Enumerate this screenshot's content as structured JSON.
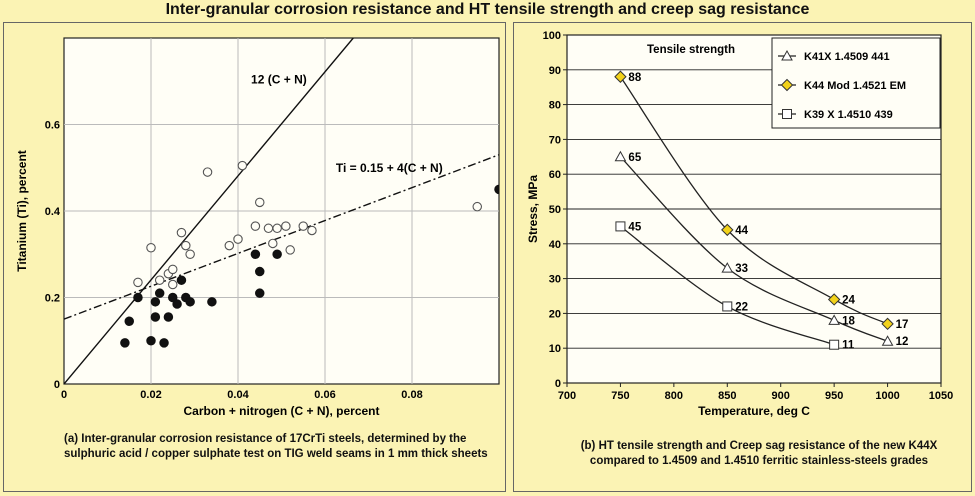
{
  "title": "Inter-granular corrosion resistance and HT tensile strength and creep sag resistance",
  "panel_a": {
    "caption": "(a) Inter-granular corrosion resistance of 17CrTi steels, determined by the sulphuric acid / copper sulphate test on TIG weld seams in 1 mm thick sheets"
  },
  "panel_b": {
    "caption": "(b) HT tensile strength and Creep sag resistance of the new K44X compared to 1.4509 and 1.4510 ferritic stainless-steels grades"
  },
  "chart_data": [
    {
      "type": "scatter",
      "title": "",
      "xlabel": "Carbon + nitrogen  (C + N), percent",
      "ylabel": "Titanium (Ti), percent",
      "xlim": [
        0,
        0.1
      ],
      "ylim": [
        0,
        0.8
      ],
      "xticks": [
        0,
        0.02,
        0.04,
        0.06,
        0.08
      ],
      "xtick_labels": [
        "0",
        "0.02",
        "0.04",
        "0.06",
        "0.08"
      ],
      "yticks": [
        0,
        0.2,
        0.4,
        0.6
      ],
      "ytick_labels": [
        "0",
        "0.2",
        "0.4",
        "0.6"
      ],
      "grid": true,
      "lines": [
        {
          "label": "12 (C + N)",
          "style": "solid",
          "x": [
            0,
            0.0665
          ],
          "y": [
            0,
            0.8
          ]
        },
        {
          "label": "Ti = 0.15 + 4(C + N)",
          "style": "dash-dot",
          "x": [
            0,
            0.1
          ],
          "y": [
            0.15,
            0.53
          ]
        }
      ],
      "series": [
        {
          "marker": "open-circle",
          "points": [
            [
              0.017,
              0.235
            ],
            [
              0.02,
              0.315
            ],
            [
              0.022,
              0.24
            ],
            [
              0.024,
              0.255
            ],
            [
              0.025,
              0.265
            ],
            [
              0.025,
              0.23
            ],
            [
              0.027,
              0.35
            ],
            [
              0.028,
              0.32
            ],
            [
              0.029,
              0.3
            ],
            [
              0.033,
              0.49
            ],
            [
              0.038,
              0.32
            ],
            [
              0.04,
              0.335
            ],
            [
              0.041,
              0.505
            ],
            [
              0.044,
              0.365
            ],
            [
              0.045,
              0.42
            ],
            [
              0.047,
              0.36
            ],
            [
              0.048,
              0.325
            ],
            [
              0.049,
              0.36
            ],
            [
              0.051,
              0.365
            ],
            [
              0.052,
              0.31
            ],
            [
              0.055,
              0.365
            ],
            [
              0.057,
              0.355
            ],
            [
              0.095,
              0.41
            ]
          ]
        },
        {
          "marker": "filled-circle",
          "points": [
            [
              0.014,
              0.095
            ],
            [
              0.015,
              0.145
            ],
            [
              0.017,
              0.2
            ],
            [
              0.02,
              0.1
            ],
            [
              0.021,
              0.155
            ],
            [
              0.021,
              0.19
            ],
            [
              0.022,
              0.21
            ],
            [
              0.023,
              0.095
            ],
            [
              0.024,
              0.155
            ],
            [
              0.025,
              0.2
            ],
            [
              0.026,
              0.185
            ],
            [
              0.027,
              0.24
            ],
            [
              0.028,
              0.2
            ],
            [
              0.029,
              0.19
            ],
            [
              0.034,
              0.19
            ],
            [
              0.044,
              0.3
            ],
            [
              0.045,
              0.26
            ],
            [
              0.045,
              0.21
            ],
            [
              0.049,
              0.3
            ],
            [
              0.1,
              0.45
            ]
          ]
        }
      ]
    },
    {
      "type": "line",
      "title": "Tensile strength",
      "xlabel": "Temperature, deg C",
      "ylabel": "Stress, MPa",
      "xlim": [
        700,
        1050
      ],
      "ylim": [
        0,
        100
      ],
      "xticks": [
        700,
        750,
        800,
        850,
        900,
        950,
        1000,
        1050
      ],
      "yticks": [
        0,
        10,
        20,
        30,
        40,
        50,
        60,
        70,
        80,
        90,
        100
      ],
      "grid": "horizontal",
      "legend": "top-right",
      "series": [
        {
          "name": "K41X 1.4509 441",
          "marker": "open-triangle",
          "color": "#ffffff",
          "x": [
            750,
            850,
            950,
            1000
          ],
          "y": [
            65,
            33,
            18,
            12
          ],
          "labels": [
            "65",
            "33",
            "18",
            "12"
          ]
        },
        {
          "name": "K44 Mod 1.4521 EM",
          "marker": "yellow-diamond",
          "color": "#f2d21a",
          "x": [
            750,
            850,
            950,
            1000
          ],
          "y": [
            88,
            44,
            24,
            17
          ],
          "labels": [
            "88",
            "44",
            "24",
            "17"
          ]
        },
        {
          "name": "K39 X 1.4510 439",
          "marker": "open-square",
          "color": "#ffffff",
          "x": [
            750,
            850,
            950
          ],
          "y": [
            45,
            22,
            11
          ],
          "labels": [
            "45",
            "22",
            "11"
          ]
        }
      ]
    }
  ]
}
